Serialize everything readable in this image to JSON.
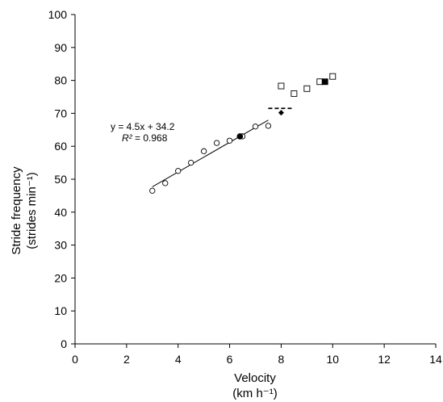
{
  "chart_data": {
    "type": "scatter",
    "xlabel": "Velocity",
    "xlabel_unit": "(km h⁻¹)",
    "ylabel": "Stride frequency",
    "ylabel_unit": "(strides min⁻¹)",
    "xlim": [
      0,
      14
    ],
    "ylim": [
      0,
      100
    ],
    "x_ticks": [
      "0",
      "2",
      "4",
      "6",
      "8",
      "10",
      "12",
      "14"
    ],
    "y_ticks": [
      "0",
      "10",
      "20",
      "30",
      "40",
      "50",
      "60",
      "70",
      "80",
      "90",
      "100"
    ],
    "grid": false,
    "series": [
      {
        "marker": "open-circle",
        "points": [
          {
            "x": 3.0,
            "y": 46.5
          },
          {
            "x": 3.5,
            "y": 48.8
          },
          {
            "x": 4.0,
            "y": 52.5
          },
          {
            "x": 4.5,
            "y": 55.0
          },
          {
            "x": 5.0,
            "y": 58.5
          },
          {
            "x": 5.5,
            "y": 61.0
          },
          {
            "x": 6.0,
            "y": 61.7
          },
          {
            "x": 6.5,
            "y": 63.0
          },
          {
            "x": 7.0,
            "y": 66.0
          },
          {
            "x": 7.5,
            "y": 66.2
          }
        ]
      },
      {
        "marker": "filled-circle",
        "points": [
          {
            "x": 6.4,
            "y": 63.0
          }
        ]
      },
      {
        "marker": "open-square",
        "points": [
          {
            "x": 8.0,
            "y": 78.3
          },
          {
            "x": 8.5,
            "y": 76.0
          },
          {
            "x": 9.0,
            "y": 77.5
          },
          {
            "x": 9.5,
            "y": 79.6
          },
          {
            "x": 10.0,
            "y": 81.2
          }
        ]
      },
      {
        "marker": "filled-square",
        "points": [
          {
            "x": 9.7,
            "y": 79.6
          }
        ]
      },
      {
        "marker": "filled-diamond",
        "points": [
          {
            "x": 8.0,
            "y": 70.2
          }
        ]
      }
    ],
    "trendline": {
      "slope": 4.5,
      "intercept": 34.2,
      "x_range": [
        3.0,
        7.5
      ]
    },
    "dashed_line": {
      "x_range": [
        7.5,
        8.5
      ],
      "y": 71.5
    },
    "annotation": {
      "equation": "y = 4.5x + 34.2",
      "r2_label": "R²",
      "r2_value": " = 0.968"
    },
    "colors": {
      "axis": "#000000",
      "markers": "#000000",
      "background": "#ffffff"
    }
  }
}
